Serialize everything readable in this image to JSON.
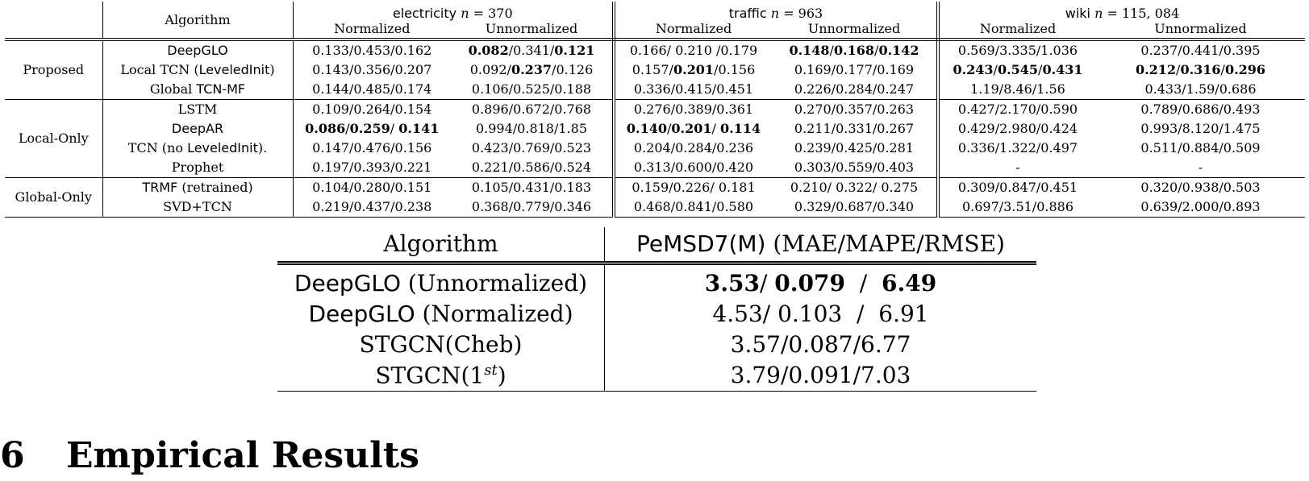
{
  "table1": {
    "header": {
      "algorithm": "Algorithm",
      "datasets": [
        {
          "name": "electricity",
          "n_label": "n",
          "n_value": "= 370"
        },
        {
          "name": "traffic",
          "n_label": "n",
          "n_value": "= 963"
        },
        {
          "name": "wiki",
          "n_label": "n",
          "n_value": "= 115, 084"
        }
      ],
      "normalized": "Normalized",
      "unnormalized": "Unnormalized"
    },
    "groups": [
      {
        "name": "Proposed",
        "rows": [
          {
            "alg_sans": "DeepGLO",
            "alg_serif": "",
            "cells": [
              [
                {
                  "t": "0.133/0.453/0.162",
                  "b": false
                }
              ],
              [
                {
                  "t": "0.082",
                  "b": true
                },
                {
                  "t": "/0.341/",
                  "b": false
                },
                {
                  "t": "0.121",
                  "b": true
                }
              ],
              [
                {
                  "t": "0.166/ 0.210 /0.179",
                  "b": false
                }
              ],
              [
                {
                  "t": "0.148",
                  "b": true
                },
                {
                  "t": "/",
                  "b": false
                },
                {
                  "t": "0.168",
                  "b": true
                },
                {
                  "t": "/",
                  "b": false
                },
                {
                  "t": "0.142",
                  "b": true
                }
              ],
              [
                {
                  "t": "0.569/3.335/1.036",
                  "b": false
                }
              ],
              [
                {
                  "t": "0.237/0.441/0.395",
                  "b": false
                }
              ]
            ]
          },
          {
            "alg_pre": "Local TCN (",
            "alg_sans": "LeveledInit",
            "alg_post": ")",
            "cells": [
              [
                {
                  "t": "0.143/0.356/0.207",
                  "b": false
                }
              ],
              [
                {
                  "t": "0.092/",
                  "b": false
                },
                {
                  "t": "0.237",
                  "b": true
                },
                {
                  "t": "/0.126",
                  "b": false
                }
              ],
              [
                {
                  "t": "0.157/",
                  "b": false
                },
                {
                  "t": "0.201",
                  "b": true
                },
                {
                  "t": "/0.156",
                  "b": false
                }
              ],
              [
                {
                  "t": "0.169/0.177/0.169",
                  "b": false
                }
              ],
              [
                {
                  "t": "0.243",
                  "b": true
                },
                {
                  "t": "/",
                  "b": false
                },
                {
                  "t": "0.545",
                  "b": true
                },
                {
                  "t": "/",
                  "b": false
                },
                {
                  "t": "0.431",
                  "b": true
                }
              ],
              [
                {
                  "t": "0.212",
                  "b": true
                },
                {
                  "t": "/",
                  "b": false
                },
                {
                  "t": "0.316",
                  "b": true
                },
                {
                  "t": "/",
                  "b": false
                },
                {
                  "t": "0.296",
                  "b": true
                }
              ]
            ]
          },
          {
            "alg_pre": "Global ",
            "alg_sans": "TCN-MF",
            "alg_post": "",
            "cells": [
              [
                {
                  "t": "0.144/0.485/0.174",
                  "b": false
                }
              ],
              [
                {
                  "t": "0.106/0.525/0.188",
                  "b": false
                }
              ],
              [
                {
                  "t": "0.336/0.415/0.451",
                  "b": false
                }
              ],
              [
                {
                  "t": "0.226/0.284/0.247",
                  "b": false
                }
              ],
              [
                {
                  "t": "1.19/8.46/1.56",
                  "b": false
                }
              ],
              [
                {
                  "t": "0.433/1.59/0.686",
                  "b": false
                }
              ]
            ]
          }
        ]
      },
      {
        "name": "Local-Only",
        "rows": [
          {
            "alg_pre": "LSTM",
            "alg_sans": "",
            "alg_post": "",
            "cells": [
              [
                {
                  "t": "0.109/0.264/0.154",
                  "b": false
                }
              ],
              [
                {
                  "t": "0.896/0.672/0.768",
                  "b": false
                }
              ],
              [
                {
                  "t": "0.276/0.389/0.361",
                  "b": false
                }
              ],
              [
                {
                  "t": "0.270/0.357/0.263",
                  "b": false
                }
              ],
              [
                {
                  "t": "0.427/2.170/0.590",
                  "b": false
                }
              ],
              [
                {
                  "t": "0.789/0.686/0.493",
                  "b": false
                }
              ]
            ]
          },
          {
            "alg_pre": "",
            "alg_sans": "DeepAR",
            "alg_post": "",
            "cells": [
              [
                {
                  "t": "0.086",
                  "b": true
                },
                {
                  "t": "/",
                  "b": false
                },
                {
                  "t": "0.259",
                  "b": true
                },
                {
                  "t": "/ ",
                  "b": false
                },
                {
                  "t": "0.141",
                  "b": true
                }
              ],
              [
                {
                  "t": "0.994/0.818/1.85",
                  "b": false
                }
              ],
              [
                {
                  "t": "0.140",
                  "b": true
                },
                {
                  "t": "/",
                  "b": false
                },
                {
                  "t": "0.201",
                  "b": true
                },
                {
                  "t": "/ ",
                  "b": false
                },
                {
                  "t": "0.114",
                  "b": true
                }
              ],
              [
                {
                  "t": "0.211/0.331/0.267",
                  "b": false
                }
              ],
              [
                {
                  "t": "0.429/2.980/0.424",
                  "b": false
                }
              ],
              [
                {
                  "t": "0.993/8.120/1.475",
                  "b": false
                }
              ]
            ]
          },
          {
            "alg_pre": "TCN (no ",
            "alg_sans": "LeveledInit",
            "alg_post": ").",
            "cells": [
              [
                {
                  "t": "0.147/0.476/0.156",
                  "b": false
                }
              ],
              [
                {
                  "t": "0.423/0.769/0.523",
                  "b": false
                }
              ],
              [
                {
                  "t": "0.204/0.284/0.236",
                  "b": false
                }
              ],
              [
                {
                  "t": "0.239/0.425/0.281",
                  "b": false
                }
              ],
              [
                {
                  "t": "0.336/1.322/0.497",
                  "b": false
                }
              ],
              [
                {
                  "t": "0.511/0.884/0.509",
                  "b": false
                }
              ]
            ]
          },
          {
            "alg_pre": "Prophet",
            "alg_sans": "",
            "alg_post": "",
            "cells": [
              [
                {
                  "t": "0.197/0.393/0.221",
                  "b": false
                }
              ],
              [
                {
                  "t": "0.221/0.586/0.524",
                  "b": false
                }
              ],
              [
                {
                  "t": "0.313/0.600/0.420",
                  "b": false
                }
              ],
              [
                {
                  "t": "0.303/0.559/0.403",
                  "b": false
                }
              ],
              [
                {
                  "t": "-",
                  "b": false
                }
              ],
              [
                {
                  "t": "-",
                  "b": false
                }
              ]
            ]
          }
        ]
      },
      {
        "name": "Global-Only",
        "rows": [
          {
            "alg_pre": "",
            "alg_sans": "TRMF",
            "alg_post": " (retrained)",
            "cells": [
              [
                {
                  "t": "0.104/0.280/0.151",
                  "b": false
                }
              ],
              [
                {
                  "t": "0.105/0.431/0.183",
                  "b": false
                }
              ],
              [
                {
                  "t": "0.159/0.226/ 0.181",
                  "b": false
                }
              ],
              [
                {
                  "t": "0.210/ 0.322/ 0.275",
                  "b": false
                }
              ],
              [
                {
                  "t": "0.309/0.847/0.451",
                  "b": false
                }
              ],
              [
                {
                  "t": "0.320/0.938/0.503",
                  "b": false
                }
              ]
            ]
          },
          {
            "alg_pre": "SVD+TCN",
            "alg_sans": "",
            "alg_post": "",
            "cells": [
              [
                {
                  "t": "0.219/0.437/0.238",
                  "b": false
                }
              ],
              [
                {
                  "t": "0.368/0.779/0.346",
                  "b": false
                }
              ],
              [
                {
                  "t": "0.468/0.841/0.580",
                  "b": false
                }
              ],
              [
                {
                  "t": "0.329/0.687/0.340",
                  "b": false
                }
              ],
              [
                {
                  "t": "0.697/3.51/0.886",
                  "b": false
                }
              ],
              [
                {
                  "t": "0.639/2.000/0.893",
                  "b": false
                }
              ]
            ]
          }
        ]
      }
    ]
  },
  "table2": {
    "header": {
      "algorithm": "Algorithm",
      "metric_sans": "PeMSD7(M)",
      "metric_serif": " (MAE/MAPE/RMSE)"
    },
    "rows": [
      {
        "alg_sans": "DeepGLO",
        "alg_serif": " (Unnormalized)",
        "value": [
          {
            "t": "3.53",
            "b": true
          },
          {
            "t": "/ ",
            "b": false
          },
          {
            "t": "0.079",
            "b": true
          },
          {
            "t": "  /  ",
            "b": false
          },
          {
            "t": "6.49",
            "b": true
          }
        ]
      },
      {
        "alg_sans": "DeepGLO",
        "alg_serif": " (Normalized)",
        "value": [
          {
            "t": "4.53/ 0.103  /  6.91",
            "b": false
          }
        ]
      },
      {
        "alg_sans": "",
        "alg_serif": "STGCN(Cheb)",
        "value": [
          {
            "t": "3.57/0.087/6.77",
            "b": false
          }
        ]
      },
      {
        "alg_sans": "",
        "alg_serif": "STGCN(1",
        "alg_sup": "st",
        "alg_post": ")",
        "value": [
          {
            "t": "3.79/0.091/7.03",
            "b": false
          }
        ]
      }
    ]
  },
  "section": {
    "number": "6",
    "title": "Empirical Results"
  }
}
